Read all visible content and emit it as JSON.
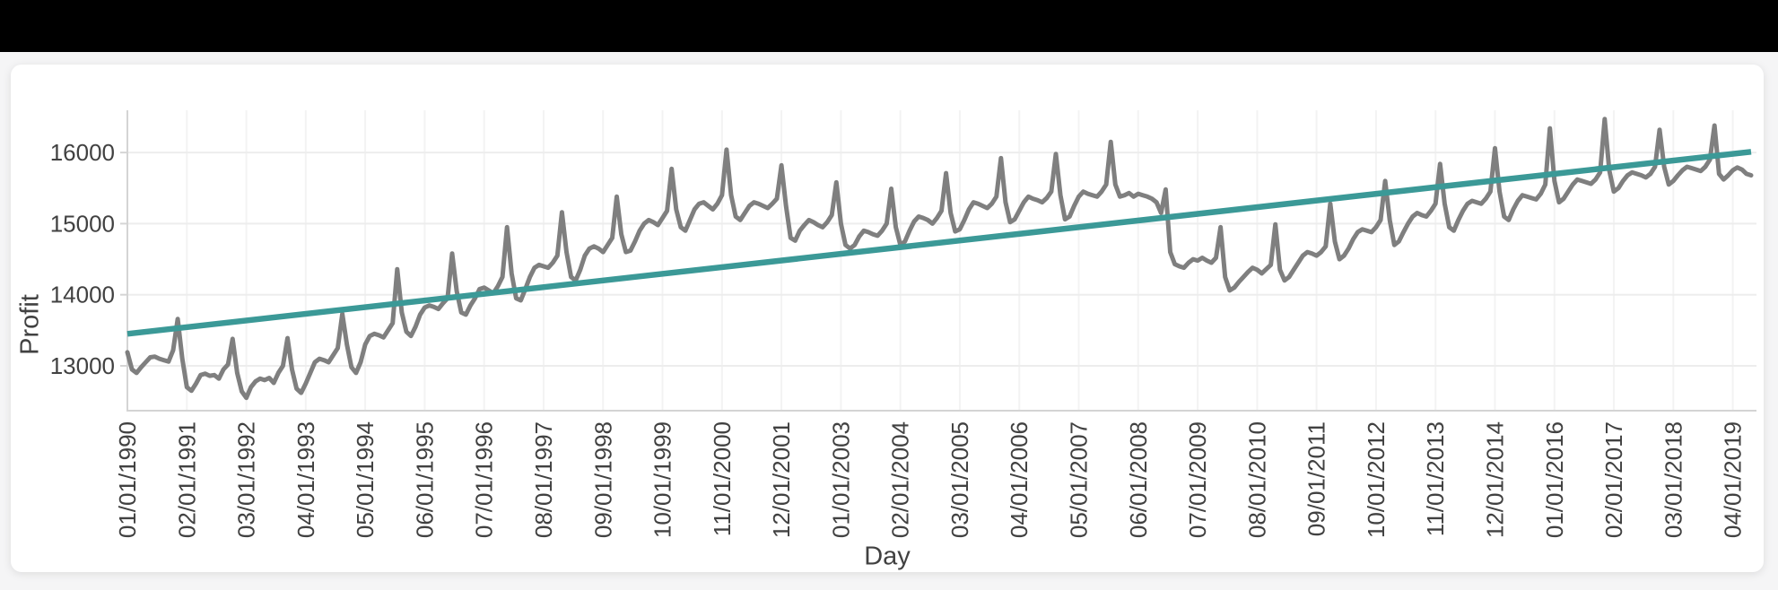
{
  "page": {
    "topbar_color": "#000000",
    "background_color": "#f5f5f6",
    "card_color": "#ffffff"
  },
  "chart_data": {
    "type": "line",
    "title": "",
    "xlabel": "Day",
    "ylabel": "Profit",
    "x_start_date": "01/01/1990",
    "x_frequency": "monthly",
    "x_tick_every_n_points": 13,
    "x_tick_labels": [
      "01/01/1990",
      "02/01/1991",
      "03/01/1992",
      "04/01/1993",
      "05/01/1994",
      "06/01/1995",
      "07/01/1996",
      "08/01/1997",
      "09/01/1998",
      "10/01/1999",
      "11/01/2000",
      "12/01/2001",
      "01/01/2003",
      "02/01/2004",
      "03/01/2005",
      "04/01/2006",
      "05/01/2007",
      "06/01/2008",
      "07/01/2009",
      "08/01/2010",
      "09/01/2011",
      "10/01/2012",
      "11/01/2013",
      "12/01/2014",
      "01/01/2016",
      "02/01/2017",
      "03/01/2018",
      "04/01/2019"
    ],
    "y_ticks": [
      13000,
      14000,
      15000,
      16000
    ],
    "ylim": [
      12370,
      16590
    ],
    "grid": true,
    "legend": "none",
    "series": [
      {
        "name": "Profit",
        "color": "#7f7f7f",
        "values": [
          13190,
          12950,
          12900,
          12980,
          13050,
          13120,
          13130,
          13100,
          13080,
          13060,
          13220,
          13660,
          13100,
          12700,
          12650,
          12750,
          12870,
          12890,
          12860,
          12870,
          12820,
          12950,
          13020,
          13380,
          12900,
          12640,
          12550,
          12700,
          12780,
          12820,
          12800,
          12830,
          12760,
          12900,
          13000,
          13390,
          12950,
          12680,
          12620,
          12750,
          12900,
          13050,
          13100,
          13080,
          13050,
          13150,
          13250,
          13730,
          13300,
          12980,
          12900,
          13050,
          13300,
          13420,
          13450,
          13430,
          13400,
          13500,
          13600,
          14360,
          13750,
          13480,
          13420,
          13550,
          13720,
          13820,
          13850,
          13830,
          13800,
          13880,
          13950,
          14580,
          14050,
          13750,
          13720,
          13850,
          13950,
          14080,
          14100,
          14060,
          14020,
          14120,
          14250,
          14950,
          14300,
          13950,
          13920,
          14080,
          14250,
          14380,
          14420,
          14400,
          14380,
          14450,
          14550,
          15160,
          14600,
          14250,
          14200,
          14350,
          14550,
          14650,
          14680,
          14650,
          14600,
          14700,
          14800,
          15380,
          14850,
          14600,
          14620,
          14750,
          14900,
          15000,
          15050,
          15020,
          14980,
          15080,
          15180,
          15770,
          15200,
          14950,
          14900,
          15050,
          15200,
          15280,
          15300,
          15250,
          15200,
          15280,
          15400,
          16040,
          15400,
          15100,
          15050,
          15150,
          15250,
          15300,
          15280,
          15250,
          15220,
          15280,
          15350,
          15820,
          15250,
          14800,
          14760,
          14900,
          14980,
          15050,
          15020,
          14980,
          14950,
          15020,
          15120,
          15580,
          15000,
          14700,
          14650,
          14700,
          14820,
          14900,
          14880,
          14850,
          14830,
          14900,
          15000,
          15490,
          14950,
          14700,
          14750,
          14900,
          15030,
          15100,
          15080,
          15050,
          15000,
          15080,
          15180,
          15710,
          15150,
          14890,
          14920,
          15050,
          15200,
          15300,
          15280,
          15250,
          15220,
          15280,
          15380,
          15920,
          15300,
          15020,
          15060,
          15180,
          15300,
          15380,
          15350,
          15330,
          15300,
          15360,
          15450,
          15980,
          15400,
          15060,
          15100,
          15250,
          15380,
          15450,
          15420,
          15400,
          15380,
          15450,
          15550,
          16150,
          15550,
          15380,
          15400,
          15430,
          15380,
          15420,
          15400,
          15380,
          15350,
          15300,
          15150,
          15480,
          14600,
          14430,
          14400,
          14380,
          14450,
          14500,
          14480,
          14520,
          14480,
          14450,
          14520,
          14950,
          14250,
          14060,
          14100,
          14180,
          14250,
          14320,
          14380,
          14350,
          14300,
          14360,
          14420,
          14990,
          14350,
          14200,
          14250,
          14350,
          14450,
          14550,
          14600,
          14580,
          14550,
          14600,
          14680,
          15280,
          14750,
          14500,
          14550,
          14650,
          14780,
          14880,
          14920,
          14900,
          14880,
          14950,
          15050,
          15600,
          15050,
          14700,
          14750,
          14880,
          15000,
          15100,
          15150,
          15120,
          15100,
          15180,
          15280,
          15840,
          15280,
          14950,
          14900,
          15050,
          15180,
          15280,
          15320,
          15300,
          15280,
          15350,
          15450,
          16060,
          15450,
          15100,
          15050,
          15200,
          15320,
          15400,
          15380,
          15360,
          15340,
          15420,
          15550,
          16340,
          15600,
          15300,
          15350,
          15450,
          15550,
          15620,
          15600,
          15580,
          15560,
          15620,
          15720,
          16470,
          15750,
          15450,
          15500,
          15600,
          15680,
          15720,
          15700,
          15680,
          15650,
          15700,
          15800,
          16320,
          15800,
          15550,
          15600,
          15680,
          15750,
          15800,
          15780,
          15760,
          15740,
          15800,
          15900,
          16380,
          15700,
          15620,
          15680,
          15750,
          15790,
          15760,
          15700,
          15680
        ]
      },
      {
        "name": "Trend",
        "type": "trendline",
        "color": "#3b9997",
        "start_value": 13450,
        "end_value": 16010
      }
    ]
  }
}
